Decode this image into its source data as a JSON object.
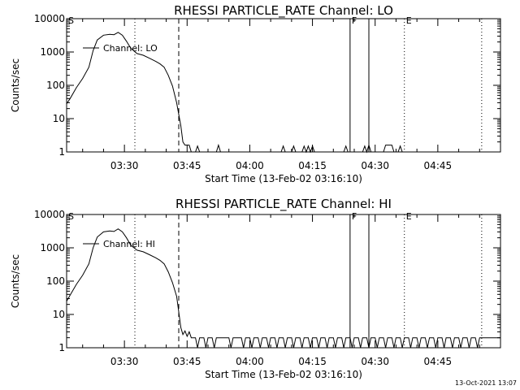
{
  "footer": {
    "timestamp": "13-Oct-2021 13:07"
  },
  "chart_data": [
    {
      "type": "line",
      "title": "RHESSI PARTICLE_RATE Channel: LO",
      "xlabel": "Start Time (13-Feb-02 03:16:10)",
      "ylabel": "Counts/sec",
      "y_scale": "log",
      "ylim": [
        1,
        10000
      ],
      "xlim": [
        "03:16:10",
        "05:00:00"
      ],
      "x_ticks": [
        "03:30",
        "03:45",
        "04:00",
        "04:15",
        "04:30",
        "04:45"
      ],
      "y_ticks": [
        "1",
        "10",
        "100",
        "1000",
        "10000"
      ],
      "legend": {
        "label": "Channel: LO",
        "position": "top-left"
      },
      "markers": [
        {
          "label": "S",
          "time": "03:16:10",
          "style": "dotted"
        },
        {
          "label": "",
          "time": "03:32:30",
          "style": "dotted"
        },
        {
          "label": "",
          "time": "03:43:00",
          "style": "dashed"
        },
        {
          "label": "F",
          "time": "04:24:00",
          "style": "solid"
        },
        {
          "label": "",
          "time": "04:28:30",
          "style": "solid"
        },
        {
          "label": "E",
          "time": "04:37:00",
          "style": "dotted"
        },
        {
          "label": "",
          "time": "04:55:30",
          "style": "dotted"
        }
      ],
      "series": [
        {
          "name": "Channel: LO",
          "points": [
            [
              "03:16:10",
              28
            ],
            [
              "03:17:00",
              40
            ],
            [
              "03:18:30",
              85
            ],
            [
              "03:20:00",
              160
            ],
            [
              "03:21:30",
              350
            ],
            [
              "03:22:30",
              1100
            ],
            [
              "03:23:30",
              2300
            ],
            [
              "03:25:00",
              3200
            ],
            [
              "03:26:30",
              3400
            ],
            [
              "03:27:30",
              3300
            ],
            [
              "03:28:30",
              3900
            ],
            [
              "03:29:30",
              3200
            ],
            [
              "03:30:30",
              2100
            ],
            [
              "03:31:30",
              1300
            ],
            [
              "03:33:00",
              900
            ],
            [
              "03:34:30",
              800
            ],
            [
              "03:36:00",
              650
            ],
            [
              "03:37:30",
              520
            ],
            [
              "03:38:30",
              440
            ],
            [
              "03:39:30",
              350
            ],
            [
              "03:40:30",
              200
            ],
            [
              "03:41:30",
              95
            ],
            [
              "03:42:30",
              30
            ],
            [
              "03:43:30",
              6
            ],
            [
              "03:44:00",
              2
            ],
            [
              "03:44:30",
              1.6
            ],
            [
              "03:45:30",
              1.6
            ],
            [
              "03:46:00",
              1
            ],
            [
              "03:47:00",
              1
            ],
            [
              "03:47:30",
              1.5
            ],
            [
              "03:48:00",
              1
            ],
            [
              "03:52:00",
              1
            ],
            [
              "03:52:30",
              1.6
            ],
            [
              "03:53:00",
              1
            ],
            [
              "04:07:30",
              1
            ],
            [
              "04:08:00",
              1.5
            ],
            [
              "04:08:30",
              1
            ],
            [
              "04:10:00",
              1
            ],
            [
              "04:10:30",
              1.5
            ],
            [
              "04:11:00",
              1
            ],
            [
              "04:12:30",
              1
            ],
            [
              "04:13:00",
              1.5
            ],
            [
              "04:13:30",
              1
            ],
            [
              "04:14:00",
              1.5
            ],
            [
              "04:14:30",
              1
            ],
            [
              "04:15:00",
              1.5
            ],
            [
              "04:15:30",
              1
            ],
            [
              "04:22:30",
              1
            ],
            [
              "04:23:00",
              1.5
            ],
            [
              "04:23:30",
              1
            ],
            [
              "04:27:00",
              1
            ],
            [
              "04:27:30",
              1.5
            ],
            [
              "04:28:00",
              1
            ],
            [
              "04:28:30",
              1.6
            ],
            [
              "04:29:00",
              1
            ],
            [
              "04:32:00",
              1
            ],
            [
              "04:32:30",
              1.6
            ],
            [
              "04:34:00",
              1.6
            ],
            [
              "04:34:30",
              1
            ],
            [
              "04:35:30",
              1
            ],
            [
              "04:36:00",
              1.5
            ],
            [
              "04:36:30",
              1
            ],
            [
              "05:00:00",
              1
            ]
          ]
        }
      ]
    },
    {
      "type": "line",
      "title": "RHESSI PARTICLE_RATE Channel: HI",
      "xlabel": "Start Time (13-Feb-02 03:16:10)",
      "ylabel": "Counts/sec",
      "y_scale": "log",
      "ylim": [
        1,
        10000
      ],
      "xlim": [
        "03:16:10",
        "05:00:00"
      ],
      "x_ticks": [
        "03:30",
        "03:45",
        "04:00",
        "04:15",
        "04:30",
        "04:45"
      ],
      "y_ticks": [
        "1",
        "10",
        "100",
        "1000",
        "10000"
      ],
      "legend": {
        "label": "Channel: HI",
        "position": "top-left"
      },
      "markers": [
        {
          "label": "S",
          "time": "03:16:10",
          "style": "dotted"
        },
        {
          "label": "",
          "time": "03:32:30",
          "style": "dotted"
        },
        {
          "label": "",
          "time": "03:43:00",
          "style": "dashed"
        },
        {
          "label": "F",
          "time": "04:24:00",
          "style": "solid"
        },
        {
          "label": "",
          "time": "04:28:30",
          "style": "solid"
        },
        {
          "label": "E",
          "time": "04:37:00",
          "style": "dotted"
        },
        {
          "label": "",
          "time": "04:55:30",
          "style": "dotted"
        }
      ],
      "series": [
        {
          "name": "Channel: HI",
          "points": [
            [
              "03:16:10",
              25
            ],
            [
              "03:17:00",
              38
            ],
            [
              "03:18:30",
              80
            ],
            [
              "03:20:00",
              150
            ],
            [
              "03:21:30",
              330
            ],
            [
              "03:22:30",
              1000
            ],
            [
              "03:23:30",
              2100
            ],
            [
              "03:25:00",
              3000
            ],
            [
              "03:26:30",
              3200
            ],
            [
              "03:27:30",
              3100
            ],
            [
              "03:28:30",
              3700
            ],
            [
              "03:29:30",
              3000
            ],
            [
              "03:30:30",
              2000
            ],
            [
              "03:31:30",
              1200
            ],
            [
              "03:33:00",
              850
            ],
            [
              "03:34:30",
              760
            ],
            [
              "03:36:00",
              620
            ],
            [
              "03:37:30",
              500
            ],
            [
              "03:38:30",
              420
            ],
            [
              "03:39:30",
              330
            ],
            [
              "03:40:30",
              190
            ],
            [
              "03:41:30",
              90
            ],
            [
              "03:42:30",
              35
            ],
            [
              "03:43:00",
              12
            ],
            [
              "03:43:30",
              4
            ],
            [
              "03:44:00",
              2.5
            ],
            [
              "03:44:30",
              3.2
            ],
            [
              "03:45:00",
              2.2
            ],
            [
              "03:45:30",
              3
            ],
            [
              "03:46:00",
              2
            ],
            [
              "03:47:00",
              2
            ],
            [
              "03:47:30",
              1
            ],
            [
              "03:48:00",
              2
            ],
            [
              "03:49:00",
              2
            ],
            [
              "03:49:30",
              1
            ],
            [
              "03:50:00",
              2
            ],
            [
              "03:51:00",
              2
            ],
            [
              "03:51:30",
              1
            ],
            [
              "03:52:00",
              2
            ],
            [
              "03:55:00",
              2
            ],
            [
              "03:55:30",
              1
            ],
            [
              "03:56:00",
              2
            ],
            [
              "03:58:00",
              2
            ],
            [
              "03:58:30",
              1
            ],
            [
              "03:59:00",
              2
            ],
            [
              "04:00:00",
              2
            ],
            [
              "04:00:30",
              1
            ],
            [
              "04:01:00",
              2
            ],
            [
              "04:02:00",
              2
            ],
            [
              "04:02:30",
              1
            ],
            [
              "04:03:00",
              2
            ],
            [
              "04:04:00",
              2
            ],
            [
              "04:04:30",
              1
            ],
            [
              "04:05:00",
              2
            ],
            [
              "04:06:00",
              2
            ],
            [
              "04:06:30",
              1
            ],
            [
              "04:07:00",
              2
            ],
            [
              "04:08:00",
              2
            ],
            [
              "04:08:30",
              1
            ],
            [
              "04:09:00",
              2
            ],
            [
              "04:10:00",
              2
            ],
            [
              "04:10:30",
              1
            ],
            [
              "04:11:00",
              2
            ],
            [
              "04:12:00",
              2
            ],
            [
              "04:12:30",
              1
            ],
            [
              "04:13:00",
              2
            ],
            [
              "04:14:00",
              2
            ],
            [
              "04:14:30",
              1
            ],
            [
              "04:15:00",
              2
            ],
            [
              "04:16:00",
              2
            ],
            [
              "04:16:30",
              1
            ],
            [
              "04:17:00",
              2
            ],
            [
              "04:18:00",
              2
            ],
            [
              "04:18:30",
              1
            ],
            [
              "04:19:00",
              2
            ],
            [
              "04:20:00",
              2
            ],
            [
              "04:20:30",
              1
            ],
            [
              "04:21:00",
              2
            ],
            [
              "04:22:00",
              2
            ],
            [
              "04:22:30",
              1
            ],
            [
              "04:23:00",
              2
            ],
            [
              "04:24:00",
              2
            ],
            [
              "04:24:30",
              1
            ],
            [
              "04:25:00",
              2
            ],
            [
              "04:26:00",
              2
            ],
            [
              "04:26:30",
              1
            ],
            [
              "04:27:00",
              2
            ],
            [
              "04:28:00",
              2
            ],
            [
              "04:28:30",
              1
            ],
            [
              "04:29:00",
              2
            ],
            [
              "04:30:00",
              2
            ],
            [
              "04:30:30",
              1
            ],
            [
              "04:31:00",
              2
            ],
            [
              "04:32:00",
              2
            ],
            [
              "04:32:30",
              1
            ],
            [
              "04:33:00",
              2
            ],
            [
              "04:34:00",
              2
            ],
            [
              "04:34:30",
              1
            ],
            [
              "04:35:00",
              2
            ],
            [
              "04:36:00",
              2
            ],
            [
              "04:36:30",
              1
            ],
            [
              "04:37:00",
              2
            ],
            [
              "04:38:00",
              2
            ],
            [
              "04:38:30",
              1
            ],
            [
              "04:39:00",
              2
            ],
            [
              "04:40:00",
              2
            ],
            [
              "04:40:30",
              1
            ],
            [
              "04:41:00",
              2
            ],
            [
              "04:42:00",
              2
            ],
            [
              "04:42:30",
              1
            ],
            [
              "04:43:00",
              2
            ],
            [
              "04:44:00",
              2
            ],
            [
              "04:44:30",
              1
            ],
            [
              "04:45:00",
              2
            ],
            [
              "04:46:00",
              2
            ],
            [
              "04:46:30",
              1
            ],
            [
              "04:47:00",
              2
            ],
            [
              "04:48:00",
              2
            ],
            [
              "04:48:30",
              1
            ],
            [
              "04:49:00",
              2
            ],
            [
              "04:50:00",
              2
            ],
            [
              "04:50:30",
              1
            ],
            [
              "04:51:00",
              2
            ],
            [
              "04:52:00",
              2
            ],
            [
              "04:52:30",
              1
            ],
            [
              "04:53:00",
              2
            ],
            [
              "04:54:00",
              2
            ],
            [
              "04:54:30",
              1
            ],
            [
              "04:55:00",
              2
            ],
            [
              "05:00:00",
              2
            ]
          ]
        }
      ]
    }
  ]
}
